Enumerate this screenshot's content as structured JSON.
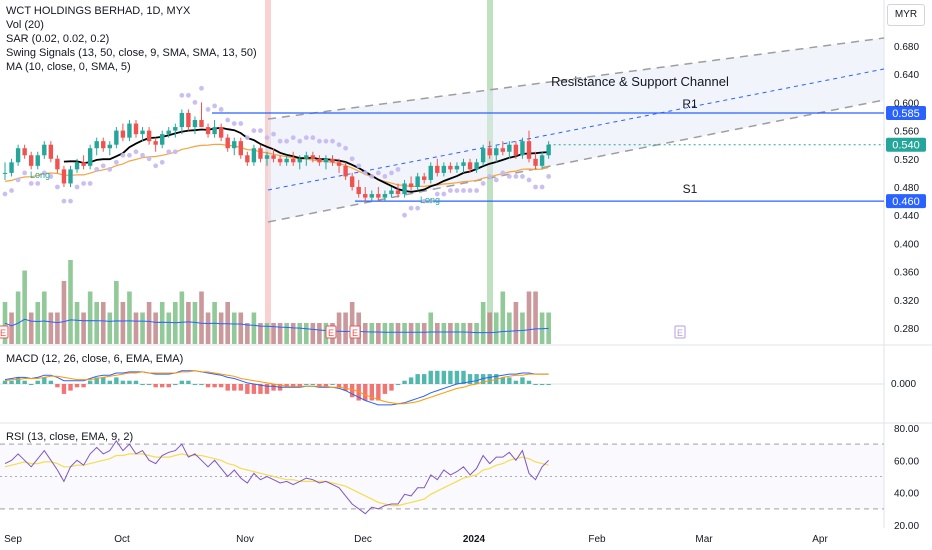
{
  "legend": {
    "main": {
      "title": "WCT HOLDINGS BERHAD, 1D, MYX",
      "lines": [
        "Vol (20)",
        "SAR (0.02, 0.02, 0.2)",
        "Swing Signals (13, 50, close, 9, SMA, SMA, 13, 50)",
        "MA (10, close, 0, SMA, 5)"
      ]
    },
    "macd": "MACD (12, 26, close, 6, EMA, EMA)",
    "rsi": "RSI (13, close, EMA, 9, 2)"
  },
  "currency_button": "MYR",
  "colors": {
    "up": "#26a69a",
    "down": "#ef5350",
    "vol_up": "#7fbf86",
    "vol_down": "#c0878a",
    "ma": "#000000",
    "swing_slow": "#f5a340",
    "sar": "#c5b8f0",
    "level": "#2962ff",
    "channel": "#9e9e9e",
    "rsi": "#7e57c2",
    "rsi_ma": "#f5dd50",
    "macd": "#2962ff",
    "signal": "#ff9800"
  },
  "chart_data": [
    {
      "type": "candlestick",
      "title": "WCT HOLDINGS BERHAD, 1D, MYX",
      "x_ticks": [
        "Sep",
        "Oct",
        "Nov",
        "Dec",
        "2024",
        "Feb",
        "Mar",
        "Apr"
      ],
      "price_ticks": [
        "0.680",
        "0.640",
        "0.600",
        "0.560",
        "0.520",
        "0.480",
        "0.440",
        "0.400",
        "0.360",
        "0.320",
        "0.280"
      ],
      "ylim": [
        0.262,
        0.7
      ],
      "ohlc": [
        [
          0.5,
          0.515,
          0.49,
          0.5
        ],
        [
          0.5,
          0.52,
          0.495,
          0.515
        ],
        [
          0.515,
          0.54,
          0.51,
          0.535
        ],
        [
          0.535,
          0.54,
          0.52,
          0.525
        ],
        [
          0.525,
          0.53,
          0.505,
          0.51
        ],
        [
          0.51,
          0.53,
          0.505,
          0.525
        ],
        [
          0.525,
          0.545,
          0.52,
          0.54
        ],
        [
          0.54,
          0.545,
          0.515,
          0.52
        ],
        [
          0.52,
          0.525,
          0.5,
          0.505
        ],
        [
          0.505,
          0.51,
          0.48,
          0.485
        ],
        [
          0.485,
          0.51,
          0.48,
          0.505
        ],
        [
          0.505,
          0.52,
          0.5,
          0.515
        ],
        [
          0.515,
          0.525,
          0.505,
          0.51
        ],
        [
          0.51,
          0.54,
          0.505,
          0.535
        ],
        [
          0.535,
          0.55,
          0.525,
          0.545
        ],
        [
          0.545,
          0.55,
          0.53,
          0.535
        ],
        [
          0.535,
          0.545,
          0.525,
          0.54
        ],
        [
          0.54,
          0.565,
          0.535,
          0.56
        ],
        [
          0.56,
          0.57,
          0.545,
          0.55
        ],
        [
          0.55,
          0.575,
          0.545,
          0.57
        ],
        [
          0.57,
          0.575,
          0.55,
          0.555
        ],
        [
          0.555,
          0.565,
          0.545,
          0.56
        ],
        [
          0.56,
          0.565,
          0.54,
          0.545
        ],
        [
          0.545,
          0.55,
          0.53,
          0.54
        ],
        [
          0.54,
          0.56,
          0.535,
          0.555
        ],
        [
          0.555,
          0.565,
          0.55,
          0.56
        ],
        [
          0.56,
          0.57,
          0.55,
          0.565
        ],
        [
          0.565,
          0.59,
          0.555,
          0.585
        ],
        [
          0.585,
          0.59,
          0.56,
          0.565
        ],
        [
          0.565,
          0.58,
          0.555,
          0.575
        ],
        [
          0.575,
          0.6,
          0.565,
          0.565
        ],
        [
          0.565,
          0.57,
          0.55,
          0.555
        ],
        [
          0.555,
          0.575,
          0.55,
          0.565
        ],
        [
          0.565,
          0.57,
          0.545,
          0.55
        ],
        [
          0.55,
          0.555,
          0.53,
          0.535
        ],
        [
          0.535,
          0.55,
          0.525,
          0.545
        ],
        [
          0.545,
          0.55,
          0.52,
          0.525
        ],
        [
          0.525,
          0.53,
          0.51,
          0.515
        ],
        [
          0.515,
          0.54,
          0.51,
          0.535
        ],
        [
          0.535,
          0.54,
          0.515,
          0.52
        ],
        [
          0.52,
          0.53,
          0.51,
          0.525
        ],
        [
          0.525,
          0.535,
          0.515,
          0.52
        ],
        [
          0.52,
          0.525,
          0.51,
          0.515
        ],
        [
          0.515,
          0.525,
          0.51,
          0.52
        ],
        [
          0.52,
          0.53,
          0.51,
          0.515
        ],
        [
          0.515,
          0.525,
          0.505,
          0.52
        ],
        [
          0.52,
          0.53,
          0.51,
          0.525
        ],
        [
          0.525,
          0.53,
          0.515,
          0.52
        ],
        [
          0.52,
          0.525,
          0.51,
          0.515
        ],
        [
          0.515,
          0.525,
          0.505,
          0.52
        ],
        [
          0.52,
          0.525,
          0.51,
          0.515
        ],
        [
          0.515,
          0.52,
          0.5,
          0.51
        ],
        [
          0.51,
          0.515,
          0.49,
          0.495
        ],
        [
          0.495,
          0.5,
          0.475,
          0.48
        ],
        [
          0.48,
          0.49,
          0.465,
          0.47
        ],
        [
          0.47,
          0.48,
          0.46,
          0.465
        ],
        [
          0.465,
          0.475,
          0.46,
          0.47
        ],
        [
          0.47,
          0.48,
          0.46,
          0.465
        ],
        [
          0.465,
          0.475,
          0.46,
          0.47
        ],
        [
          0.47,
          0.48,
          0.465,
          0.475
        ],
        [
          0.475,
          0.485,
          0.465,
          0.47
        ],
        [
          0.47,
          0.49,
          0.465,
          0.485
        ],
        [
          0.485,
          0.495,
          0.475,
          0.48
        ],
        [
          0.48,
          0.5,
          0.475,
          0.495
        ],
        [
          0.495,
          0.5,
          0.485,
          0.49
        ],
        [
          0.49,
          0.515,
          0.485,
          0.51
        ],
        [
          0.51,
          0.52,
          0.495,
          0.5
        ],
        [
          0.5,
          0.515,
          0.495,
          0.51
        ],
        [
          0.51,
          0.515,
          0.5,
          0.505
        ],
        [
          0.505,
          0.515,
          0.5,
          0.51
        ],
        [
          0.51,
          0.52,
          0.5,
          0.515
        ],
        [
          0.515,
          0.52,
          0.5,
          0.505
        ],
        [
          0.505,
          0.52,
          0.5,
          0.515
        ],
        [
          0.515,
          0.54,
          0.51,
          0.535
        ],
        [
          0.535,
          0.545,
          0.52,
          0.525
        ],
        [
          0.525,
          0.54,
          0.515,
          0.535
        ],
        [
          0.535,
          0.545,
          0.525,
          0.53
        ],
        [
          0.53,
          0.545,
          0.52,
          0.54
        ],
        [
          0.54,
          0.545,
          0.52,
          0.525
        ],
        [
          0.525,
          0.55,
          0.52,
          0.545
        ],
        [
          0.545,
          0.56,
          0.515,
          0.52
        ],
        [
          0.52,
          0.53,
          0.505,
          0.51
        ],
        [
          0.51,
          0.53,
          0.505,
          0.525
        ],
        [
          0.525,
          0.545,
          0.52,
          0.54
        ]
      ],
      "volume": [
        [
          4,
          1
        ],
        [
          3,
          0
        ],
        [
          5,
          1
        ],
        [
          7,
          1
        ],
        [
          3,
          0
        ],
        [
          4,
          1
        ],
        [
          5,
          1
        ],
        [
          3,
          0
        ],
        [
          3,
          0
        ],
        [
          6,
          0
        ],
        [
          8,
          1
        ],
        [
          4,
          1
        ],
        [
          3,
          0
        ],
        [
          5,
          1
        ],
        [
          4,
          1
        ],
        [
          4,
          0
        ],
        [
          3,
          1
        ],
        [
          6,
          1
        ],
        [
          4,
          0
        ],
        [
          5,
          1
        ],
        [
          3,
          0
        ],
        [
          3,
          1
        ],
        [
          4,
          0
        ],
        [
          3,
          0
        ],
        [
          4,
          1
        ],
        [
          3,
          1
        ],
        [
          4,
          1
        ],
        [
          5,
          1
        ],
        [
          4,
          0
        ],
        [
          4,
          1
        ],
        [
          5,
          0
        ],
        [
          3,
          0
        ],
        [
          4,
          1
        ],
        [
          3,
          0
        ],
        [
          4,
          0
        ],
        [
          3,
          1
        ],
        [
          3,
          0
        ],
        [
          2,
          0
        ],
        [
          3,
          1
        ],
        [
          2,
          0
        ],
        [
          2,
          1
        ],
        [
          2,
          0
        ],
        [
          2,
          0
        ],
        [
          2,
          1
        ],
        [
          2,
          0
        ],
        [
          2,
          1
        ],
        [
          2,
          1
        ],
        [
          2,
          0
        ],
        [
          2,
          0
        ],
        [
          2,
          1
        ],
        [
          2,
          0
        ],
        [
          3,
          0
        ],
        [
          3,
          0
        ],
        [
          4,
          0
        ],
        [
          3,
          0
        ],
        [
          2,
          0
        ],
        [
          2,
          1
        ],
        [
          2,
          0
        ],
        [
          2,
          1
        ],
        [
          2,
          1
        ],
        [
          2,
          0
        ],
        [
          2,
          1
        ],
        [
          2,
          0
        ],
        [
          2,
          1
        ],
        [
          2,
          0
        ],
        [
          3,
          1
        ],
        [
          2,
          0
        ],
        [
          2,
          1
        ],
        [
          2,
          0
        ],
        [
          2,
          1
        ],
        [
          2,
          1
        ],
        [
          2,
          0
        ],
        [
          2,
          1
        ],
        [
          4,
          1
        ],
        [
          3,
          0
        ],
        [
          3,
          1
        ],
        [
          5,
          1
        ],
        [
          3,
          1
        ],
        [
          4,
          0
        ],
        [
          3,
          1
        ],
        [
          5,
          0
        ],
        [
          5,
          0
        ],
        [
          3,
          1
        ],
        [
          3,
          1
        ]
      ],
      "volume_scale": "relative",
      "ma_label": "MA (10, close, 0, SMA, 5)",
      "levels": [
        {
          "name": "R1",
          "value": 0.585,
          "label": "0.585"
        },
        {
          "name": "S1",
          "value": 0.46,
          "label": "0.460"
        }
      ],
      "last_price_label": "0.540",
      "channel_title": "Resistance & Support Channel",
      "signal_labels": [
        "Long",
        "Long"
      ],
      "event_markers": [
        "E",
        "E",
        "E",
        "E"
      ]
    },
    {
      "type": "line",
      "title": "MACD (12, 26, close, 6, EMA, EMA)",
      "y_ticks": [
        "0.000"
      ],
      "series": [
        {
          "name": "MACD",
          "values": [
            0.004,
            0.005,
            0.006,
            0.006,
            0.005,
            0.006,
            0.008,
            0.008,
            0.006,
            0.003,
            0.003,
            0.003,
            0.003,
            0.005,
            0.007,
            0.008,
            0.008,
            0.01,
            0.01,
            0.011,
            0.011,
            0.011,
            0.01,
            0.009,
            0.009,
            0.009,
            0.01,
            0.012,
            0.012,
            0.012,
            0.011,
            0.01,
            0.009,
            0.008,
            0.006,
            0.005,
            0.003,
            0.001,
            0.0,
            -0.001,
            -0.002,
            -0.002,
            -0.003,
            -0.003,
            -0.003,
            -0.003,
            -0.002,
            -0.002,
            -0.003,
            -0.003,
            -0.003,
            -0.004,
            -0.006,
            -0.009,
            -0.012,
            -0.015,
            -0.017,
            -0.019,
            -0.019,
            -0.019,
            -0.018,
            -0.017,
            -0.015,
            -0.013,
            -0.011,
            -0.008,
            -0.006,
            -0.004,
            -0.002,
            0.0,
            0.001,
            0.002,
            0.003,
            0.005,
            0.006,
            0.007,
            0.008,
            0.009,
            0.009,
            0.01,
            0.01,
            0.009,
            0.009,
            0.009
          ]
        },
        {
          "name": "Signal",
          "values": [
            0.003,
            0.004,
            0.004,
            0.005,
            0.005,
            0.005,
            0.006,
            0.007,
            0.007,
            0.006,
            0.005,
            0.004,
            0.004,
            0.004,
            0.005,
            0.006,
            0.007,
            0.008,
            0.009,
            0.01,
            0.01,
            0.011,
            0.01,
            0.01,
            0.01,
            0.01,
            0.01,
            0.011,
            0.011,
            0.012,
            0.011,
            0.011,
            0.01,
            0.009,
            0.008,
            0.007,
            0.005,
            0.004,
            0.003,
            0.002,
            0.001,
            0.0,
            -0.001,
            -0.002,
            -0.002,
            -0.002,
            -0.002,
            -0.002,
            -0.002,
            -0.002,
            -0.003,
            -0.003,
            -0.004,
            -0.005,
            -0.007,
            -0.01,
            -0.012,
            -0.014,
            -0.016,
            -0.017,
            -0.018,
            -0.018,
            -0.017,
            -0.016,
            -0.014,
            -0.012,
            -0.01,
            -0.008,
            -0.006,
            -0.004,
            -0.003,
            -0.001,
            0.0,
            0.002,
            0.003,
            0.004,
            0.006,
            0.007,
            0.008,
            0.008,
            0.009,
            0.009,
            0.009,
            0.009
          ]
        }
      ],
      "ylim": [
        -0.025,
        0.018
      ]
    },
    {
      "type": "line",
      "title": "RSI (13, close, EMA, 9, 2)",
      "y_ticks": [
        "80.00",
        "60.00",
        "40.00",
        "20.00"
      ],
      "ylim": [
        19,
        82
      ],
      "guides": [
        70,
        50,
        30
      ],
      "series": [
        {
          "name": "RSI",
          "values": [
            58,
            60,
            64,
            60,
            56,
            61,
            66,
            60,
            54,
            47,
            56,
            60,
            57,
            64,
            68,
            64,
            66,
            72,
            66,
            70,
            64,
            66,
            60,
            58,
            63,
            65,
            66,
            70,
            62,
            64,
            60,
            56,
            60,
            55,
            50,
            54,
            49,
            46,
            52,
            48,
            50,
            48,
            46,
            47,
            45,
            47,
            49,
            48,
            46,
            47,
            45,
            43,
            38,
            33,
            30,
            27,
            31,
            30,
            32,
            33,
            33,
            39,
            38,
            43,
            43,
            51,
            48,
            54,
            51,
            53,
            56,
            51,
            55,
            63,
            58,
            62,
            62,
            65,
            60,
            66,
            52,
            48,
            56,
            60
          ]
        },
        {
          "name": "RSI MA",
          "values": [
            56,
            57,
            58,
            59,
            58,
            58,
            59,
            59,
            58,
            56,
            56,
            57,
            57,
            58,
            59,
            60,
            61,
            63,
            63,
            64,
            64,
            64,
            63,
            62,
            62,
            62,
            63,
            64,
            63,
            63,
            63,
            62,
            61,
            60,
            58,
            57,
            55,
            54,
            53,
            52,
            51,
            50,
            49,
            48,
            48,
            47,
            47,
            47,
            47,
            47,
            46,
            45,
            44,
            42,
            40,
            38,
            36,
            34,
            33,
            32,
            32,
            33,
            34,
            35,
            36,
            39,
            41,
            43,
            45,
            47,
            49,
            50,
            51,
            54,
            55,
            57,
            58,
            60,
            61,
            62,
            61,
            59,
            58,
            57
          ]
        }
      ]
    }
  ]
}
